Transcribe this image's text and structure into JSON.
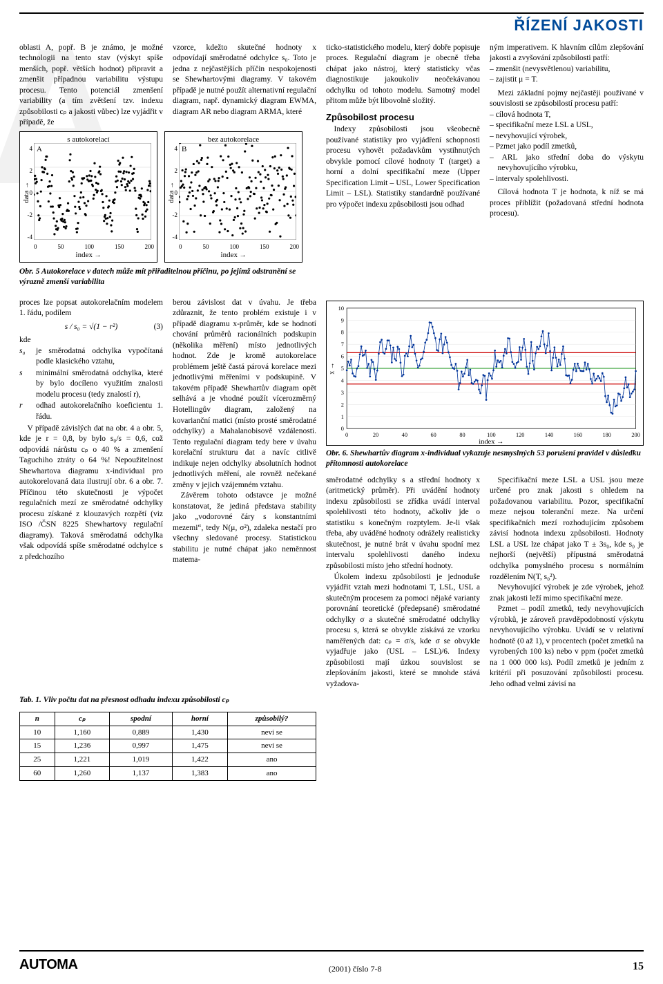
{
  "header": {
    "section_title": "ŘÍZENÍ JAKOSTI"
  },
  "toprow": {
    "c1": "oblasti A, popř. B je známo, je možné technologii na tento stav (výskyt spíše menších, popř. větších hodnot) připravit a zmenšit případnou variabilitu výstupu procesu. Tento potenciál zmenšení variability (a tím zvětšení tzv. indexu způsobilosti cₚ a jakosti vůbec) lze vyjádřit v případě, že",
    "c2": "vzorce, kdežto skutečné hodnoty x odpovídají směrodatné odchylce s₀. Toto je jedna z nejčastějších příčin nespokojenosti se Shewhartovými diagramy. V takovém případě je nutné použít alternativní regulační diagram, např. dynamický diagram EWMA, diagram AR nebo diagram ARMA, které",
    "c3a": "ticko-statistického modelu, který dobře popisuje proces. Regulační diagram je obecně třeba chápat jako nástroj, který statisticky včas diagnostikuje jakoukoliv neočekávanou odchylku od tohoto modelu. Samotný model přitom může být libovolně složitý.",
    "c3_head": "Způsobilost procesu",
    "c3b": "Indexy způsobilosti jsou všeobecně používané statistiky pro vyjádření schopnosti procesu vyhovět požadavkům vystihnutých obvykle pomocí cílové hodnoty T (target) a horní a dolní specifikační meze (Upper Specification Limit – USL, Lower Specification Limit – LSL). Statistiky standardně používané pro výpočet indexu způsobilosti jsou odhad",
    "c4a": "ným imperativem. K hlavním cílům zlepšování jakosti a zvyšování způsobilosti patří:",
    "c4_list": [
      "zmenšit (nevysvětlenou) variabilitu,",
      "zajistit μ = T."
    ],
    "c4b": "Mezi základní pojmy nejčastěji používané v souvislosti se způsobilostí procesu patří:",
    "c4_list2": [
      "cílová hodnota T,",
      "specifikační meze LSL a USL,",
      "nevyhovující výrobek,",
      "Pzmet jako podíl zmetků,",
      "ARL jako střední doba do výskytu nevyhovujícího výrobku,",
      "intervaly spolehlivosti."
    ],
    "c4c": "Cílová hodnota T je hodnota, k níž se má proces přiblížit (požadovaná střední hodnota procesu)."
  },
  "scatter": {
    "titleA": "s autokorelací",
    "titleB": "bez autokorelace",
    "labelA": "A",
    "labelB": "B",
    "ylabel": "data",
    "xlabel": "index",
    "xlim": [
      0,
      200
    ],
    "ylim": [
      -4,
      4
    ],
    "xticks": [
      "0",
      "50",
      "100",
      "150",
      "200"
    ],
    "yticks": [
      "4",
      "2",
      "0",
      "-2",
      "-4"
    ],
    "w": 170,
    "h": 140,
    "ptcolor": "#000000",
    "ptsize": 1.6,
    "n": 200,
    "seedA": 11,
    "seedB": 22,
    "rhoA": 0.85,
    "rhoB": 0.0
  },
  "fig5cap": "Obr. 5 Autokorelace v datech může mít přiřaditelnou příčinu, po jejímž odstranění se výrazně zmenší variabilita",
  "midtext": {
    "left1": "proces lze popsat autokorelačním modelem 1. řádu, podílem",
    "eq": "s / s₀ = √(1 − r²)",
    "eqno": "(3)",
    "kde": "kde",
    "defs": [
      {
        "k": "s₀",
        "v": "je směrodatná odchylka vypočítaná podle klasického vztahu,"
      },
      {
        "k": "s",
        "v": "minimální směrodatná odchylka, které by bylo docíleno využitím znalosti modelu procesu (tedy znalostí r),"
      },
      {
        "k": "r",
        "v": "odhad autokorelačního koeficientu 1. řádu."
      }
    ],
    "left2": "V případě závislých dat na obr. 4 a obr. 5, kde je r = 0,8, by bylo s₀/s = 0,6, což odpovídá nárůstu cₚ o 40 % a zmenšení Taguchiho ztráty o 64 %! Nepoužitelnost Shewhartova diagramu x-individual pro autokorelovaná data ilustrují obr. 6 a obr. 7. Příčinou této skutečnosti je výpočet regulačních mezí ze směrodatné odchylky procesu získané z klouzavých rozpětí (viz ISO /ČSN 8225 Shewhartovy regulační diagramy). Taková směrodatná odchylka však odpovídá spíše směrodatné odchylce s z předchozího",
    "mid1": "berou závislost dat v úvahu. Je třeba zdůraznit, že tento problém existuje i v případě diagramu x-průměr, kde se hodnotí chování průměrů racionálních podskupin (několika měření) místo jednotlivých hodnot. Zde je kromě autokorelace problémem ještě častá párová korelace mezi jednotlivými měřeními v podskupině. V takovém případě Shewhartův diagram opět selhává a je vhodné použít vícerozměrný Hotellingův diagram, založený na kovarianční matici (místo prosté směrodatné odchylky) a Mahalanobisově vzdálenosti. Tento regulační diagram tedy bere v úvahu korelační strukturu dat a navíc citlivě indikuje nejen odchylky absolutních hodnot jednotlivých měření, ale rovněž nečekané změny v jejich vzájemném vztahu.",
    "mid2": "Závěrem tohoto odstavce je možné konstatovat, že jediná představa stability jako „vodorovné čáry s konstantními mezemi“, tedy N(μ, σ²), zdaleka nestačí pro všechny sledované procesy. Statistickou stabilitu je nutné chápat jako neměnnost matema-"
  },
  "linechart": {
    "xlim": [
      0,
      200
    ],
    "ylim": [
      0,
      10
    ],
    "n": 200,
    "seed": 33,
    "rho": 0.9,
    "cl": 5,
    "ucl": 6.3,
    "lcl": 3.7,
    "line_color": "#003399",
    "limit_color": "#cc0000",
    "cl_color": "#008800",
    "point_color": "#003399",
    "point_r": 1.3,
    "ylabel": "x",
    "xlabel": "index",
    "xticks": [
      "0",
      "20",
      "40",
      "60",
      "80",
      "100",
      "120",
      "140",
      "160",
      "180",
      "200"
    ],
    "yticks": [
      "10",
      "9",
      "8",
      "7",
      "6",
      "5",
      "4",
      "3",
      "2",
      "1",
      "0"
    ]
  },
  "fig6cap": "Obr. 6. Shewhartův diagram x-individual vykazuje nesmyslných 53 porušení pravidel v důsledku přítomnosti autokorelace",
  "lowrow": {
    "c1": "směrodatné odchylky s a střední hodnoty x (aritmetický průměr). Při uvádění hodnoty indexu způsobilosti se zřídka uvádí interval spolehlivosti této hodnoty, ačkoliv jde o statistiku s konečným rozptylem. Je-li však třeba, aby uváděné hodnoty odrážely realisticky skutečnost, je nutné brát v úvahu spodní mez intervalu spolehlivosti daného indexu způsobilosti místo jeho střední hodnoty.",
    "c1b": "Úkolem indexu způsobilosti je jednoduše vyjádřit vztah mezi hodnotami T, LSL, USL a skutečným procesem za pomoci nějaké varianty porovnání teoretické (předepsané) směrodatné odchylky σ a skutečné směrodatné odchylky procesu s, která se obvykle získává ze vzorku naměřených dat: cₚ = σ/s, kde σ se obvykle vyjadřuje jako (USL – LSL)/6. Indexy způsobilosti mají úzkou souvislost se zlepšováním jakosti, které se mnohde stává vyžadova-",
    "c2": "Specifikační meze LSL a USL jsou meze určené pro znak jakosti s ohledem na požadovanou variabilitu. Pozor, specifikační meze nejsou toleranční meze. Na určení specifikačních mezí rozhodujícím způsobem závisí hodnota indexu způsobilosti. Hodnoty LSL a USL lze chápat jako T ± 3s₀, kde s₀ je nejhorší (největší) přípustná směrodatná odchylka pomyslného procesu s normálním rozdělením N(T, s₀²).",
    "c2b": "Nevyhovující výrobek je zde výrobek, jehož znak jakosti leží mimo specifikační meze.",
    "c2c": "Pzmet – podíl zmetků, tedy nevyhovujících výrobků, je zároveň pravděpodobností výskytu nevyhovujícího výrobku. Uvádí se v relativní hodnotě (0 až 1), v procentech (počet zmetků na vyrobených 100 ks) nebo v ppm (počet zmetků na 1 000 000 ks). Podíl zmetků je jedním z kritérií při posuzování způsobilosti procesu. Jeho odhad velmi závisí na"
  },
  "table": {
    "caption": "Tab. 1. Vliv počtu dat na přesnost odhadu indexu způsobilosti cₚ",
    "cols": [
      "n",
      "cₚ",
      "spodní",
      "horní",
      "způsobilý?"
    ],
    "rows": [
      [
        "10",
        "1,160",
        "0,889",
        "1,430",
        "neví se"
      ],
      [
        "15",
        "1,236",
        "0,997",
        "1,475",
        "neví se"
      ],
      [
        "25",
        "1,221",
        "1,019",
        "1,422",
        "ano"
      ],
      [
        "60",
        "1,260",
        "1,137",
        "1,383",
        "ano"
      ]
    ]
  },
  "footer": {
    "logo": "AUTOMA",
    "issue": "(2001) číslo 7-8",
    "page": "15"
  }
}
